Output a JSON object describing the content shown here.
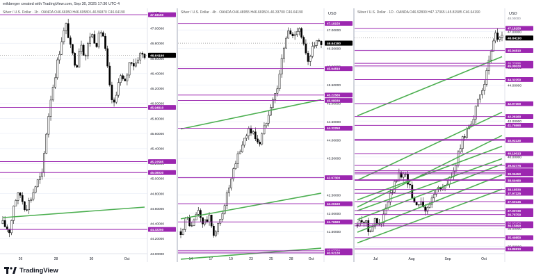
{
  "credit": "erikbreger created with TradingView.com, Sep 30, 2025 17:36 UTC-4",
  "brand": "TradingView",
  "colors": {
    "level": "#9c27b0",
    "trend": "#4caf50",
    "current_price_badge": "#000000",
    "candle_body": "#000000",
    "grid": "#f0f3fa"
  },
  "panels": [
    {
      "title": "Silver / U.S. Dollar · 1h · OANDA  O46.66950 H46.69580 L46.56870 C46.64190",
      "currency": "USD",
      "price_axis": {
        "min": 44.0,
        "max": 47.1,
        "ticks": [
          47.0,
          46.8,
          46.6,
          46.4,
          46.2,
          46.0,
          45.8,
          45.6,
          45.4,
          45.2,
          45.0,
          44.8,
          44.6,
          44.4,
          44.2,
          44.0
        ]
      },
      "time_labels": [
        "26",
        "28",
        "30",
        "Oct"
      ],
      "levels": [
        47.1815,
        45.9481,
        45.22585,
        45.0803,
        44.3225
      ],
      "current_price": 46.6419,
      "trendlines": [
        {
          "from": [
            0.0,
            44.48
          ],
          "to": [
            1.0,
            44.62
          ]
        }
      ],
      "candle_path": [
        [
          0.0,
          44.4
        ],
        [
          0.05,
          44.3
        ],
        [
          0.08,
          44.7
        ],
        [
          0.12,
          44.8
        ],
        [
          0.16,
          44.6
        ],
        [
          0.2,
          44.75
        ],
        [
          0.24,
          44.95
        ],
        [
          0.28,
          45.05
        ],
        [
          0.3,
          45.5
        ],
        [
          0.34,
          46.1
        ],
        [
          0.38,
          46.5
        ],
        [
          0.42,
          46.9
        ],
        [
          0.45,
          47.05
        ],
        [
          0.48,
          46.7
        ],
        [
          0.52,
          46.5
        ],
        [
          0.55,
          46.85
        ],
        [
          0.58,
          46.6
        ],
        [
          0.62,
          46.95
        ],
        [
          0.66,
          46.8
        ],
        [
          0.7,
          47.0
        ],
        [
          0.73,
          46.6
        ],
        [
          0.76,
          46.1
        ],
        [
          0.79,
          45.95
        ],
        [
          0.82,
          46.4
        ],
        [
          0.86,
          46.25
        ],
        [
          0.9,
          46.6
        ],
        [
          0.93,
          46.5
        ],
        [
          0.96,
          46.65
        ]
      ]
    },
    {
      "title": "Silver / U.S. Dollar · 4h · OANDA  O46.48955 H46.66950 L46.33700 C46.64190",
      "currency": "USD",
      "price_axis": {
        "min": 40.9,
        "max": 47.25,
        "ticks": [
          47.0,
          46.5,
          46.0,
          45.5,
          45.0,
          44.5,
          44.0,
          43.5,
          43.0,
          42.5,
          42.0,
          41.5,
          41.0
        ]
      },
      "time_labels": [
        "14",
        "17",
        "19",
        "23",
        "25",
        "28",
        "Oct"
      ],
      "levels": [
        47.1815,
        45.9481,
        45.22585,
        45.0803,
        44.3225,
        42.973,
        42.2616,
        41.7659,
        40.9778,
        40.9213
      ],
      "current_price": 46.6419,
      "trendlines": [
        {
          "from": [
            0.0,
            44.3
          ],
          "to": [
            1.0,
            45.1
          ]
        },
        {
          "from": [
            0.0,
            41.85
          ],
          "to": [
            1.0,
            42.55
          ]
        },
        {
          "from": [
            0.0,
            40.75
          ],
          "to": [
            1.0,
            41.05
          ]
        }
      ],
      "candle_path": [
        [
          0.0,
          41.5
        ],
        [
          0.04,
          41.9
        ],
        [
          0.08,
          41.6
        ],
        [
          0.12,
          42.1
        ],
        [
          0.16,
          41.7
        ],
        [
          0.2,
          41.9
        ],
        [
          0.24,
          41.4
        ],
        [
          0.28,
          41.8
        ],
        [
          0.32,
          42.4
        ],
        [
          0.36,
          42.9
        ],
        [
          0.4,
          43.5
        ],
        [
          0.44,
          43.9
        ],
        [
          0.48,
          44.3
        ],
        [
          0.52,
          44.15
        ],
        [
          0.56,
          43.9
        ],
        [
          0.6,
          44.4
        ],
        [
          0.64,
          45.0
        ],
        [
          0.68,
          45.3
        ],
        [
          0.72,
          46.2
        ],
        [
          0.76,
          47.0
        ],
        [
          0.8,
          46.8
        ],
        [
          0.84,
          47.15
        ],
        [
          0.88,
          46.5
        ],
        [
          0.91,
          46.0
        ],
        [
          0.94,
          46.7
        ],
        [
          0.97,
          46.64
        ]
      ]
    },
    {
      "title": "Silver / U.S. Dollar · 1D · OANDA  O46.92800 H47.17365 L45.81585 C46.64190",
      "currency": "USD",
      "price_axis": {
        "min": 34.6,
        "max": 47.6,
        "ticks": [
          47.0,
          46.0,
          45.0,
          44.0,
          43.0,
          42.0,
          41.0,
          40.0,
          39.0,
          38.0,
          37.0,
          36.0,
          35.0
        ]
      },
      "time_labels": [
        "Jul",
        "Aug",
        "Sep",
        "Oct"
      ],
      "top_label": "48.00000",
      "levels": [
        47.1815,
        45.9481,
        45.22585,
        45.0803,
        44.3225,
        42.973,
        42.2616,
        41.7659,
        40.97785,
        40.9213,
        40.19013,
        39.52775,
        39.2307,
        39.1328,
        39.0645,
        38.73,
        38.6948,
        38.1853,
        37.97225,
        37.50145,
        37.0073,
        36.7875,
        36.2745,
        36.1569,
        35.4985,
        34.8691
      ],
      "current_price": 46.6419,
      "trendlines": [
        {
          "from": [
            0.0,
            42.3
          ],
          "to": [
            1.0,
            45.6
          ]
        },
        {
          "from": [
            0.0,
            38.7
          ],
          "to": [
            1.0,
            42.5
          ]
        },
        {
          "from": [
            0.0,
            37.2
          ],
          "to": [
            1.0,
            41.2
          ]
        },
        {
          "from": [
            0.0,
            37.6
          ],
          "to": [
            1.0,
            40.6
          ]
        },
        {
          "from": [
            0.0,
            37.0
          ],
          "to": [
            1.0,
            39.9
          ]
        },
        {
          "from": [
            0.0,
            36.5
          ],
          "to": [
            1.0,
            39.6
          ]
        },
        {
          "from": [
            0.0,
            35.8
          ],
          "to": [
            1.0,
            39.0
          ]
        },
        {
          "from": [
            0.0,
            35.2
          ],
          "to": [
            1.0,
            38.2
          ]
        }
      ],
      "candle_path": [
        [
          0.0,
          36.2
        ],
        [
          0.04,
          36.6
        ],
        [
          0.08,
          35.9
        ],
        [
          0.12,
          36.4
        ],
        [
          0.16,
          36.1
        ],
        [
          0.2,
          37.2
        ],
        [
          0.24,
          38.1
        ],
        [
          0.28,
          38.9
        ],
        [
          0.32,
          39.2
        ],
        [
          0.36,
          38.4
        ],
        [
          0.4,
          37.3
        ],
        [
          0.44,
          37.6
        ],
        [
          0.48,
          36.9
        ],
        [
          0.52,
          37.8
        ],
        [
          0.56,
          38.4
        ],
        [
          0.6,
          38.2
        ],
        [
          0.64,
          38.8
        ],
        [
          0.68,
          39.5
        ],
        [
          0.72,
          40.8
        ],
        [
          0.76,
          41.6
        ],
        [
          0.8,
          42.2
        ],
        [
          0.83,
          42.9
        ],
        [
          0.86,
          43.8
        ],
        [
          0.89,
          44.5
        ],
        [
          0.92,
          45.6
        ],
        [
          0.94,
          46.5
        ],
        [
          0.96,
          46.9
        ],
        [
          0.98,
          46.64
        ]
      ]
    }
  ]
}
